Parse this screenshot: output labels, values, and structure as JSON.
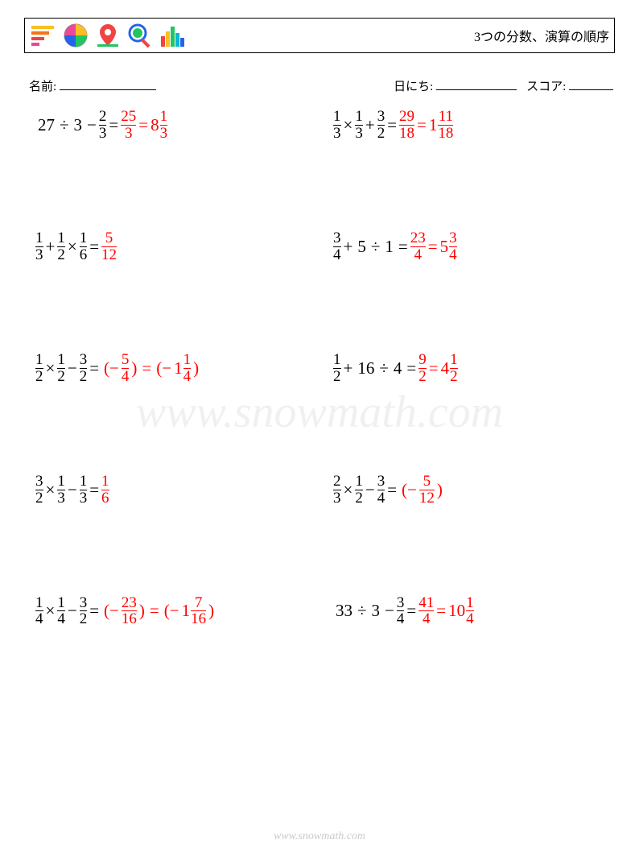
{
  "title": "3つの分数、演算の順序",
  "meta": {
    "name_label": "名前:",
    "date_label": "日にち:",
    "score_label": "スコア:"
  },
  "watermark": "www.snowmath.com",
  "footer": "www.snowmath.com",
  "colors": {
    "answer": "#ff0000",
    "text": "#000000",
    "border": "#000000",
    "watermark": "rgba(0,0,0,0.06)"
  },
  "logo_colors": {
    "bars": [
      "#fbbf24",
      "#f97316",
      "#ef4444",
      "#ec4899"
    ],
    "pie": [
      "#fbbf24",
      "#22c55e",
      "#2563eb",
      "#ec4899"
    ],
    "pin_body": "#ef4444",
    "pin_handle": "#22c55e",
    "magnifier_lens": "#2563eb",
    "magnifier_globe": "#22c55e",
    "magnifier_handle": "#ef4444",
    "barchart": [
      "#ef4444",
      "#fbbf24",
      "#22c55e",
      "#06b6d4",
      "#2563eb"
    ]
  },
  "problems": [
    {
      "left": {
        "question": {
          "type": "mix",
          "parts": [
            "27",
            " ÷ ",
            "3",
            " − ",
            {
              "n": "2",
              "d": "3"
            }
          ]
        },
        "answers": [
          {
            "type": "frac",
            "n": "25",
            "d": "3"
          },
          {
            "type": "mixed",
            "w": "8",
            "n": "1",
            "d": "3"
          }
        ]
      },
      "right": {
        "question": {
          "type": "mix",
          "parts": [
            {
              "n": "1",
              "d": "3"
            },
            " × ",
            {
              "n": "1",
              "d": "3"
            },
            " + ",
            {
              "n": "3",
              "d": "2"
            }
          ]
        },
        "answers": [
          {
            "type": "frac",
            "n": "29",
            "d": "18"
          },
          {
            "type": "mixed",
            "w": "1",
            "n": "11",
            "d": "18"
          }
        ]
      }
    },
    {
      "left": {
        "question": {
          "type": "mix",
          "parts": [
            {
              "n": "1",
              "d": "3"
            },
            " + ",
            {
              "n": "1",
              "d": "2"
            },
            " × ",
            {
              "n": "1",
              "d": "6"
            }
          ]
        },
        "answers": [
          {
            "type": "frac",
            "n": "5",
            "d": "12"
          }
        ]
      },
      "right": {
        "question": {
          "type": "mix",
          "parts": [
            {
              "n": "3",
              "d": "4"
            },
            " + ",
            "5",
            " ÷ ",
            "1"
          ]
        },
        "answers": [
          {
            "type": "frac",
            "n": "23",
            "d": "4"
          },
          {
            "type": "mixed",
            "w": "5",
            "n": "3",
            "d": "4"
          }
        ]
      }
    },
    {
      "left": {
        "question": {
          "type": "mix",
          "parts": [
            {
              "n": "1",
              "d": "2"
            },
            " × ",
            {
              "n": "1",
              "d": "2"
            },
            " − ",
            {
              "n": "3",
              "d": "2"
            }
          ]
        },
        "answers": [
          {
            "type": "paren_neg_frac",
            "n": "5",
            "d": "4"
          },
          {
            "type": "paren_neg_mixed",
            "w": "1",
            "n": "1",
            "d": "4"
          }
        ]
      },
      "right": {
        "question": {
          "type": "mix",
          "parts": [
            {
              "n": "1",
              "d": "2"
            },
            " + ",
            "16",
            " ÷ ",
            "4"
          ]
        },
        "answers": [
          {
            "type": "frac",
            "n": "9",
            "d": "2"
          },
          {
            "type": "mixed",
            "w": "4",
            "n": "1",
            "d": "2"
          }
        ]
      }
    },
    {
      "left": {
        "question": {
          "type": "mix",
          "parts": [
            {
              "n": "3",
              "d": "2"
            },
            " × ",
            {
              "n": "1",
              "d": "3"
            },
            " − ",
            {
              "n": "1",
              "d": "3"
            }
          ]
        },
        "answers": [
          {
            "type": "frac",
            "n": "1",
            "d": "6"
          }
        ]
      },
      "right": {
        "question": {
          "type": "mix",
          "parts": [
            {
              "n": "2",
              "d": "3"
            },
            " × ",
            {
              "n": "1",
              "d": "2"
            },
            " − ",
            {
              "n": "3",
              "d": "4"
            }
          ]
        },
        "answers": [
          {
            "type": "paren_neg_frac",
            "n": "5",
            "d": "12"
          }
        ]
      }
    },
    {
      "left": {
        "question": {
          "type": "mix",
          "parts": [
            {
              "n": "1",
              "d": "4"
            },
            " × ",
            {
              "n": "1",
              "d": "4"
            },
            " − ",
            {
              "n": "3",
              "d": "2"
            }
          ]
        },
        "answers": [
          {
            "type": "paren_neg_frac",
            "n": "23",
            "d": "16"
          },
          {
            "type": "paren_neg_mixed",
            "w": "1",
            "n": "7",
            "d": "16"
          }
        ]
      },
      "right": {
        "question": {
          "type": "mix",
          "parts": [
            "33",
            " ÷ ",
            "3",
            " − ",
            {
              "n": "3",
              "d": "4"
            }
          ]
        },
        "answers": [
          {
            "type": "frac",
            "n": "41",
            "d": "4"
          },
          {
            "type": "mixed",
            "w": "10",
            "n": "1",
            "d": "4"
          }
        ]
      }
    }
  ]
}
